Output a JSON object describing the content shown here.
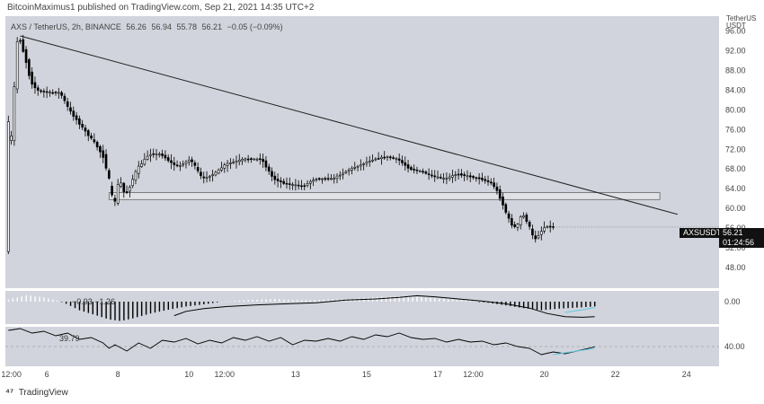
{
  "header": {
    "text": "BitcoinMaximus1 published on TradingView.com, Sep 21, 2021 14:35 UTC+2"
  },
  "legend": {
    "pair": "AXS / TetherUS, 2h, BINANCE",
    "o": "56.26",
    "h": "56.94",
    "l": "55.78",
    "c": "56.21",
    "chg": "−0.05 (−0.09%)"
  },
  "currency": {
    "line1": "TetherUS",
    "line2": "USDT"
  },
  "macd_label": {
    "a": "−0.93",
    "b": "−1.26"
  },
  "rsi_label": {
    "value": "39.79"
  },
  "badge": {
    "symbol": "AXSUSDT",
    "price": "56.21",
    "countdown": "01:24:56"
  },
  "footer": {
    "brand": "TradingView"
  },
  "colors": {
    "bull": "#ffffff",
    "bear": "#000000",
    "wick": "#000000",
    "signal": "#5ec8e5"
  },
  "chart_data": {
    "type": "candlestick",
    "y_ticks": [
      48,
      52,
      56,
      60,
      64,
      68,
      72,
      76,
      80,
      84,
      88,
      92,
      96
    ],
    "y_tick_labels": [
      "48.00",
      "52.00",
      "56.00",
      "60.00",
      "64.00",
      "68.00",
      "72.00",
      "76.00",
      "80.00",
      "84.00",
      "88.00",
      "92.00",
      "96.00"
    ],
    "ylim": [
      44,
      99
    ],
    "x_ticks": [
      {
        "label": "12:00",
        "t": 1
      },
      {
        "label": "6",
        "t": 13
      },
      {
        "label": "8",
        "t": 37
      },
      {
        "label": "10",
        "t": 61
      },
      {
        "label": "12:00",
        "t": 73
      },
      {
        "label": "13",
        "t": 97
      },
      {
        "label": "15",
        "t": 121
      },
      {
        "label": "17",
        "t": 145
      },
      {
        "label": "12:00",
        "t": 157
      },
      {
        "label": "20",
        "t": 181
      },
      {
        "label": "22",
        "t": 205
      },
      {
        "label": "24",
        "t": 229
      }
    ],
    "xlim": [
      -1,
      240
    ],
    "price_path": [
      [
        0,
        73.5
      ],
      [
        2,
        75
      ],
      [
        3,
        93
      ],
      [
        4,
        95
      ],
      [
        6,
        91
      ],
      [
        8,
        86
      ],
      [
        10,
        84
      ],
      [
        14,
        83.5
      ],
      [
        18,
        83.5
      ],
      [
        21,
        80
      ],
      [
        26,
        76
      ],
      [
        30,
        73
      ],
      [
        33,
        70
      ],
      [
        35,
        64
      ],
      [
        36,
        60
      ],
      [
        38,
        66
      ],
      [
        40,
        62.5
      ],
      [
        44,
        68
      ],
      [
        48,
        71
      ],
      [
        52,
        71
      ],
      [
        56,
        69
      ],
      [
        58,
        68.5
      ],
      [
        62,
        70
      ],
      [
        66,
        66
      ],
      [
        70,
        67
      ],
      [
        74,
        69
      ],
      [
        80,
        70
      ],
      [
        86,
        70
      ],
      [
        88,
        68
      ],
      [
        90,
        66
      ],
      [
        94,
        65
      ],
      [
        100,
        64.5
      ],
      [
        104,
        66
      ],
      [
        110,
        66
      ],
      [
        116,
        68
      ],
      [
        120,
        69
      ],
      [
        124,
        70
      ],
      [
        128,
        70.5
      ],
      [
        132,
        70
      ],
      [
        136,
        68
      ],
      [
        140,
        67.5
      ],
      [
        144,
        66.5
      ],
      [
        148,
        66
      ],
      [
        152,
        67
      ],
      [
        156,
        66.5
      ],
      [
        160,
        66
      ],
      [
        164,
        65
      ],
      [
        166,
        63
      ],
      [
        168,
        60
      ],
      [
        170,
        57
      ],
      [
        172,
        56
      ],
      [
        174,
        59
      ],
      [
        176,
        57
      ],
      [
        178,
        53.5
      ],
      [
        180,
        55
      ],
      [
        182,
        56.5
      ],
      [
        184,
        56.2
      ]
    ],
    "trendline": {
      "from": {
        "t": 4,
        "p": 95
      },
      "to": {
        "t": 226,
        "p": 58.8
      }
    },
    "support_zone": {
      "t_start": 34,
      "t_end": 220,
      "low": 61.8,
      "high": 63.2
    },
    "last_price": 56.21,
    "macd": {
      "zero_label": "0.00",
      "histogram": [
        [
          0,
          0.4
        ],
        [
          6,
          1.2
        ],
        [
          12,
          0.8
        ],
        [
          18,
          0
        ],
        [
          24,
          -1.6
        ],
        [
          30,
          -2.6
        ],
        [
          34,
          -3.3
        ],
        [
          38,
          -3.6
        ],
        [
          42,
          -3.1
        ],
        [
          48,
          -2.2
        ],
        [
          54,
          -1.5
        ],
        [
          60,
          -0.9
        ],
        [
          66,
          -0.5
        ],
        [
          72,
          0
        ],
        [
          78,
          0.2
        ],
        [
          84,
          0.4
        ],
        [
          90,
          0.5
        ],
        [
          96,
          0.3
        ],
        [
          102,
          0.3
        ],
        [
          108,
          0.4
        ],
        [
          114,
          0.5
        ],
        [
          120,
          0.7
        ],
        [
          126,
          0.9
        ],
        [
          132,
          1
        ],
        [
          138,
          0.9
        ],
        [
          144,
          0.6
        ],
        [
          150,
          0.4
        ],
        [
          156,
          0.2
        ],
        [
          162,
          -0.2
        ],
        [
          168,
          -0.7
        ],
        [
          174,
          -1.2
        ],
        [
          180,
          -1.6
        ],
        [
          186,
          -1.3
        ],
        [
          192,
          -1.1
        ],
        [
          198,
          -0.9
        ]
      ],
      "macd_line": [
        [
          56,
          -2.6
        ],
        [
          60,
          -1.8
        ],
        [
          66,
          -1.3
        ],
        [
          74,
          -0.9
        ],
        [
          84,
          -0.6
        ],
        [
          94,
          -0.4
        ],
        [
          104,
          -0.2
        ],
        [
          114,
          0.3
        ],
        [
          124,
          0.5
        ],
        [
          132,
          0.8
        ],
        [
          138,
          1.1
        ],
        [
          144,
          0.9
        ],
        [
          152,
          0.5
        ],
        [
          160,
          0.1
        ],
        [
          168,
          -0.4
        ],
        [
          176,
          -1.2
        ],
        [
          182,
          -2.2
        ],
        [
          188,
          -2.8
        ],
        [
          194,
          -2.9
        ],
        [
          198,
          -2.8
        ]
      ],
      "signal_line": [
        [
          188,
          -2
        ],
        [
          194,
          -1.5
        ],
        [
          198,
          -1.1
        ]
      ]
    },
    "rsi": {
      "label": "40.00",
      "level": 40,
      "ylim": [
        22,
        62
      ],
      "line": [
        [
          0,
          58
        ],
        [
          4,
          60
        ],
        [
          8,
          55
        ],
        [
          12,
          57
        ],
        [
          16,
          52
        ],
        [
          20,
          55
        ],
        [
          24,
          48
        ],
        [
          28,
          50
        ],
        [
          32,
          44
        ],
        [
          34,
          38
        ],
        [
          36,
          42
        ],
        [
          40,
          35
        ],
        [
          44,
          44
        ],
        [
          48,
          38
        ],
        [
          52,
          47
        ],
        [
          56,
          45
        ],
        [
          60,
          49
        ],
        [
          64,
          43
        ],
        [
          68,
          47
        ],
        [
          72,
          44
        ],
        [
          76,
          50
        ],
        [
          80,
          47
        ],
        [
          84,
          51
        ],
        [
          88,
          46
        ],
        [
          92,
          50
        ],
        [
          96,
          42
        ],
        [
          100,
          47
        ],
        [
          104,
          46
        ],
        [
          108,
          49
        ],
        [
          112,
          46
        ],
        [
          116,
          51
        ],
        [
          120,
          48
        ],
        [
          124,
          53
        ],
        [
          128,
          51
        ],
        [
          132,
          55
        ],
        [
          136,
          50
        ],
        [
          140,
          48
        ],
        [
          144,
          49
        ],
        [
          148,
          45
        ],
        [
          152,
          48
        ],
        [
          156,
          45
        ],
        [
          160,
          46
        ],
        [
          164,
          42
        ],
        [
          168,
          44
        ],
        [
          172,
          40
        ],
        [
          176,
          38
        ],
        [
          180,
          31
        ],
        [
          184,
          34
        ],
        [
          188,
          32
        ],
        [
          192,
          35
        ],
        [
          196,
          38
        ],
        [
          198,
          39.8
        ]
      ],
      "signal_line": [
        [
          184,
          31
        ],
        [
          190,
          34
        ],
        [
          198,
          38
        ]
      ]
    }
  }
}
